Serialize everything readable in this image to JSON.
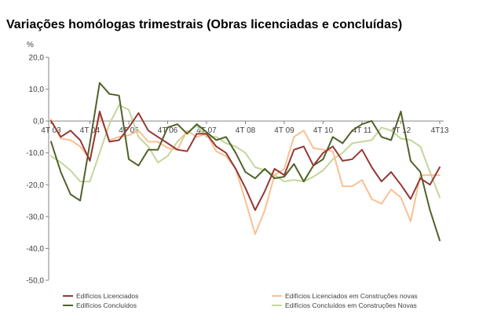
{
  "chart_data": {
    "type": "line",
    "title": "Variações homólogas trimestrais (Obras licenciadas e concluídas)",
    "ylabel": "%",
    "xlabel": "",
    "ylim": [
      -50,
      20
    ],
    "yticks": [
      20,
      10,
      0,
      -10,
      -20,
      -30,
      -40,
      -50
    ],
    "ytick_labels": [
      "20,0",
      "10,0",
      "0,0",
      "-10,0",
      "-20,0",
      "-30,0",
      "-40,0",
      "-50,0"
    ],
    "x_tick_labels": [
      "4T 03",
      "4T 04",
      "4T 05",
      "4T 06",
      "4T 07",
      "4T 08",
      "4T 09",
      "4T 10",
      "4T 11",
      "4T 12",
      "4T13"
    ],
    "quarters_per_tick": 4,
    "grid": false,
    "legend_position": "bottom",
    "series": [
      {
        "name": "Edifícios Licenciados",
        "color": "#953735",
        "values": [
          0,
          -5,
          -3,
          -6,
          -12.5,
          3,
          -6.5,
          -6,
          -2,
          2.5,
          -3,
          -5,
          -7,
          -9,
          -9.5,
          -4,
          -4,
          -8,
          -10,
          -15,
          -21,
          -28,
          -22,
          -15,
          -17,
          -9,
          -8,
          -14,
          -10,
          -8,
          -12.5,
          -12,
          -9,
          -14.5,
          -19,
          -16,
          -20,
          -24.5,
          -18,
          -20,
          -14.5
        ]
      },
      {
        "name": "Edifícios Concluídos",
        "color": "#4f6228",
        "values": [
          -6.5,
          -16,
          -23,
          -25,
          -7,
          12,
          8.5,
          8,
          -12,
          -14,
          -9,
          -9,
          -2,
          -1,
          -4,
          -1,
          -3.5,
          -6,
          -5,
          -10,
          -16,
          -18,
          -15,
          -18,
          -17.5,
          -13.5,
          -19,
          -14,
          -12,
          -5,
          -7,
          -3,
          -1,
          0,
          -5,
          -6,
          3,
          -12.5,
          -16,
          -28,
          -37.5
        ]
      },
      {
        "name": "Edifícios Licenciados em Construções novas",
        "color": "#fac090",
        "values": [
          0.5,
          -5.5,
          -6,
          -8,
          -12,
          2,
          -6,
          -5,
          -4.5,
          -3,
          -6.5,
          -6.5,
          -8.5,
          -9,
          -3,
          -5,
          -4,
          -9.5,
          -11,
          -15,
          -25,
          -35.5,
          -28,
          -17,
          -15,
          -5,
          -3,
          -8.5,
          -9,
          -9.5,
          -20.5,
          -20.5,
          -18.5,
          -24.5,
          -26,
          -21.5,
          -24,
          -31.5,
          -17,
          -17,
          -17
        ]
      },
      {
        "name": "Edifícios Concluídos em Construções Novas",
        "color": "#c3d69b",
        "values": [
          -11,
          -13,
          -15.5,
          -19,
          -19,
          -10,
          -1,
          5,
          3.5,
          -5,
          -8,
          -13,
          -11,
          -6.5,
          -3.5,
          -1.5,
          -5,
          -5,
          -7,
          -8,
          -10,
          -14.5,
          -15.5,
          -17,
          -19,
          -18.5,
          -19,
          -17.5,
          -15.5,
          -12,
          -10,
          -7,
          -6.5,
          -6,
          -2,
          -3,
          -5.5,
          -6,
          -8,
          -16,
          -24
        ]
      }
    ]
  }
}
